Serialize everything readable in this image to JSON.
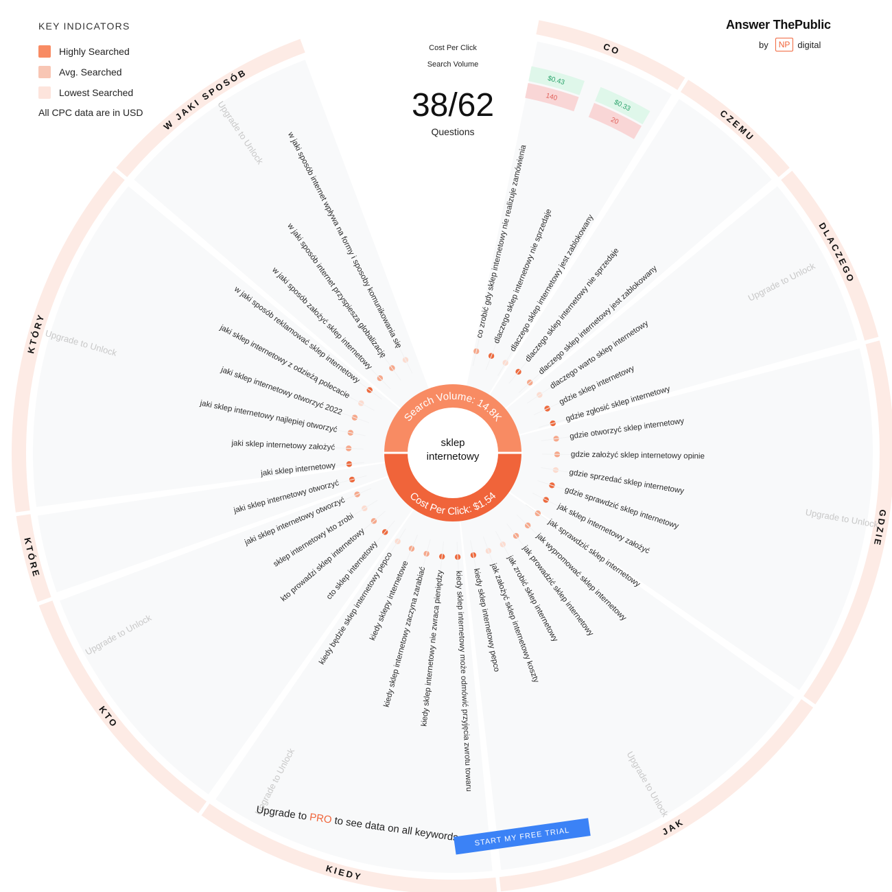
{
  "legend": {
    "title": "KEY INDICATORS",
    "items": [
      {
        "label": "Highly Searched",
        "color": "#f88b63"
      },
      {
        "label": "Avg. Searched",
        "color": "#f8c6b4"
      },
      {
        "label": "Lowest Searched",
        "color": "#fde4dc"
      }
    ],
    "note": "All CPC data are in USD"
  },
  "brand": {
    "name": "Answer ThePublic",
    "by": "by",
    "np": "NP",
    "digital": "digital"
  },
  "header": {
    "cpc_label": "Cost Per Click",
    "volume_label": "Search Volume",
    "count": "38/62",
    "count_label": "Questions"
  },
  "hub": {
    "keyword_line1": "sklep",
    "keyword_line2": "internetowy",
    "search_volume": "Search Volume: 14.8K",
    "cpc": "Cost Per Click: $1.54",
    "top_color": "#f88b63",
    "bottom_color": "#f0643a"
  },
  "categories": [
    "CO",
    "CZEMU",
    "DLACZEGO",
    "GDZIE",
    "JAK",
    "KIEDY",
    "KTO",
    "KTÓRE",
    "KTÓRY",
    "W JAKI SPOSÓB"
  ],
  "unlock_label": "Upgrade to Unlock",
  "cpc_badges": [
    {
      "cpc": "$0.43",
      "volume": "140"
    },
    {
      "cpc": "$0.33",
      "volume": "20"
    }
  ],
  "keywords": [
    {
      "text": "co zrobić gdy sklep internetowy nie realizuje zamówienia",
      "level": "avg"
    },
    {
      "text": "dlaczego sklep internetowy nie sprzedaje",
      "level": "high"
    },
    {
      "text": "dlaczego sklep internetowy jest zablokowany",
      "level": "low"
    },
    {
      "text": "dlaczego sklep internetowy nie sprzedaje",
      "level": "high"
    },
    {
      "text": "dlaczego sklep internetowy jest zablokowany",
      "level": "avg"
    },
    {
      "text": "dlaczego warto sklep internetowy",
      "level": "low"
    },
    {
      "text": "gdzie sklep internetowy",
      "level": "high"
    },
    {
      "text": "gdzie zgłosić sklep internetowy",
      "level": "high"
    },
    {
      "text": "gdzie otworzyć sklep internetowy",
      "level": "avg"
    },
    {
      "text": "gdzie założyć sklep internetowy opinie",
      "level": "avg"
    },
    {
      "text": "gdzie sprzedać sklep internetowy",
      "level": "low"
    },
    {
      "text": "gdzie sprawdzić sklep internetowy",
      "level": "high"
    },
    {
      "text": "jak sklep internetowy założyć",
      "level": "high"
    },
    {
      "text": "jak sprawdzić sklep internetowy",
      "level": "avg"
    },
    {
      "text": "jak wypromować sklep internetowy",
      "level": "avg"
    },
    {
      "text": "jak prowadzić sklep internetowy",
      "level": "avg"
    },
    {
      "text": "jak zrobić sklep internetowy",
      "level": "low"
    },
    {
      "text": "jak założyć sklep internetowy koszty",
      "level": "low"
    },
    {
      "text": "kiedy sklep internetowy pepco",
      "level": "high"
    },
    {
      "text": "kiedy sklep internetowy może odmówić przyjęcia zwrotu towaru",
      "level": "high"
    },
    {
      "text": "kiedy sklep internetowy nie zwraca pieniędzy",
      "level": "high"
    },
    {
      "text": "kiedy sklep internetowy zaczyna zarabiać",
      "level": "avg"
    },
    {
      "text": "kiedy sklepy internetowe",
      "level": "avg"
    },
    {
      "text": "kiedy będzie sklep internetowy pepco",
      "level": "low"
    },
    {
      "text": "cto sklep internetowy",
      "level": "high"
    },
    {
      "text": "kto prowadzi sklep internetowy",
      "level": "avg"
    },
    {
      "text": "sklep internetowy kto zrobi",
      "level": "low"
    },
    {
      "text": "jaki sklep internetowy otworzyć",
      "level": "avg"
    },
    {
      "text": "jaki sklep internetowy otworzyć",
      "level": "high"
    },
    {
      "text": "jaki sklep internetowy",
      "level": "high"
    },
    {
      "text": "jaki sklep internetowy założyć",
      "level": "avg"
    },
    {
      "text": "jaki sklep internetowy najlepiej otworzyć",
      "level": "avg"
    },
    {
      "text": "jaki sklep internetowy otworzyć 2022",
      "level": "avg"
    },
    {
      "text": "jaki sklep internetowy z odzieżą polecacie",
      "level": "low"
    },
    {
      "text": "w jaki sposób reklamować sklep internetowy",
      "level": "high"
    },
    {
      "text": "w jaki sposób założyć sklep internetowy",
      "level": "avg"
    },
    {
      "text": "w jaki sposób internet przyspiesza globalizację",
      "level": "avg"
    },
    {
      "text": "w jaki sposób internet wpływa na formy i sposoby komunikowania się",
      "level": "low"
    }
  ],
  "upgrade": {
    "prefix": "Upgrade to ",
    "pro": "PRO",
    "suffix": " to see data on all keywords",
    "cta": "START MY FREE TRIAL",
    "cta_color": "#3b82f6"
  }
}
